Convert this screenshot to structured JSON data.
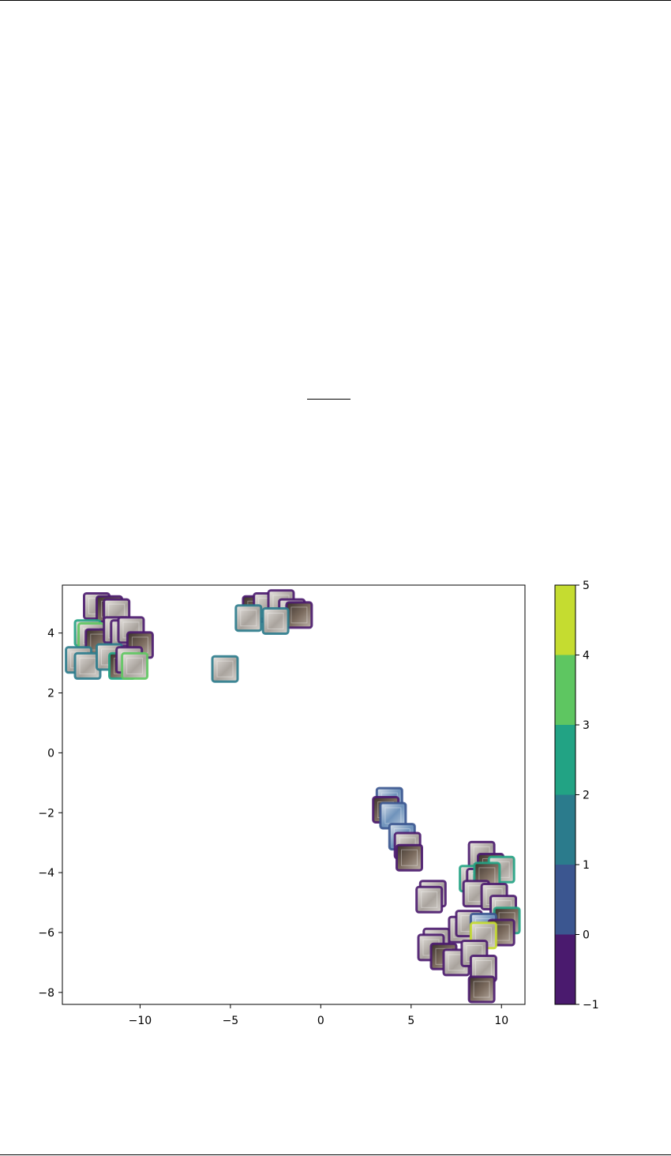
{
  "chart_data": {
    "type": "scatter",
    "title": "",
    "xlabel": "",
    "ylabel": "",
    "xlim": [
      -14.3,
      11.3
    ],
    "ylim": [
      -8.4,
      5.6
    ],
    "xticks": [
      -10,
      -5,
      0,
      5,
      10
    ],
    "yticks": [
      -8,
      -6,
      -4,
      -2,
      0,
      2,
      4
    ],
    "colorbar": {
      "vmin": -1,
      "vmax": 5,
      "ticks": [
        -1,
        0,
        1,
        2,
        3,
        4,
        5
      ],
      "colors": [
        "#4a1a6e",
        "#3b5690",
        "#2b7b8c",
        "#22a384",
        "#5ec661",
        "#c5dc30"
      ]
    },
    "points": [
      {
        "x": -12.4,
        "y": 4.9,
        "label": -1
      },
      {
        "x": -11.7,
        "y": 4.8,
        "label": -1
      },
      {
        "x": -11.3,
        "y": 4.7,
        "label": -1
      },
      {
        "x": -12.9,
        "y": 4.0,
        "label": 2
      },
      {
        "x": -12.7,
        "y": 3.9,
        "label": 3
      },
      {
        "x": -12.3,
        "y": 3.7,
        "label": -1
      },
      {
        "x": -11.3,
        "y": 4.1,
        "label": -1
      },
      {
        "x": -10.9,
        "y": 4.0,
        "label": -1
      },
      {
        "x": -10.5,
        "y": 4.1,
        "label": -1
      },
      {
        "x": -10.0,
        "y": 3.6,
        "label": -1
      },
      {
        "x": -13.4,
        "y": 3.1,
        "label": 1
      },
      {
        "x": -12.9,
        "y": 2.9,
        "label": 1
      },
      {
        "x": -11.7,
        "y": 3.2,
        "label": 1
      },
      {
        "x": -11.0,
        "y": 2.9,
        "label": 2
      },
      {
        "x": -10.6,
        "y": 3.1,
        "label": -1
      },
      {
        "x": -10.3,
        "y": 2.9,
        "label": 3
      },
      {
        "x": -5.3,
        "y": 2.8,
        "label": 1
      },
      {
        "x": -3.6,
        "y": 4.8,
        "label": -1
      },
      {
        "x": -3.0,
        "y": 4.9,
        "label": -1
      },
      {
        "x": -2.2,
        "y": 5.0,
        "label": -1
      },
      {
        "x": -1.6,
        "y": 4.7,
        "label": -1
      },
      {
        "x": -1.2,
        "y": 4.6,
        "label": -1
      },
      {
        "x": -4.0,
        "y": 4.5,
        "label": 1
      },
      {
        "x": -2.5,
        "y": 4.4,
        "label": 1
      },
      {
        "x": 3.8,
        "y": -1.6,
        "label": 0
      },
      {
        "x": 3.6,
        "y": -1.9,
        "label": -1
      },
      {
        "x": 4.0,
        "y": -2.1,
        "label": 0
      },
      {
        "x": 4.5,
        "y": -2.8,
        "label": 0
      },
      {
        "x": 4.8,
        "y": -3.1,
        "label": -1
      },
      {
        "x": 4.9,
        "y": -3.5,
        "label": -1
      },
      {
        "x": 6.2,
        "y": -4.7,
        "label": -1
      },
      {
        "x": 6.0,
        "y": -4.9,
        "label": -1
      },
      {
        "x": 8.9,
        "y": -3.4,
        "label": -1
      },
      {
        "x": 9.4,
        "y": -3.8,
        "label": -1
      },
      {
        "x": 10.0,
        "y": -3.9,
        "label": 2
      },
      {
        "x": 8.4,
        "y": -4.2,
        "label": 2
      },
      {
        "x": 8.8,
        "y": -4.3,
        "label": -1
      },
      {
        "x": 9.2,
        "y": -4.1,
        "label": 2
      },
      {
        "x": 8.6,
        "y": -4.7,
        "label": -1
      },
      {
        "x": 9.6,
        "y": -4.8,
        "label": -1
      },
      {
        "x": 10.1,
        "y": -5.2,
        "label": -1
      },
      {
        "x": 10.3,
        "y": -5.6,
        "label": 2
      },
      {
        "x": 7.8,
        "y": -5.9,
        "label": -1
      },
      {
        "x": 8.2,
        "y": -5.7,
        "label": -1
      },
      {
        "x": 9.0,
        "y": -5.8,
        "label": 0
      },
      {
        "x": 10.0,
        "y": -6.0,
        "label": -1
      },
      {
        "x": 9.0,
        "y": -6.1,
        "label": 5
      },
      {
        "x": 6.4,
        "y": -6.3,
        "label": -1
      },
      {
        "x": 6.1,
        "y": -6.5,
        "label": -1
      },
      {
        "x": 6.8,
        "y": -6.8,
        "label": -1
      },
      {
        "x": 7.5,
        "y": -7.0,
        "label": -1
      },
      {
        "x": 8.5,
        "y": -6.7,
        "label": -1
      },
      {
        "x": 9.0,
        "y": -7.2,
        "label": -1
      },
      {
        "x": 8.9,
        "y": -7.9,
        "label": -1
      }
    ]
  }
}
